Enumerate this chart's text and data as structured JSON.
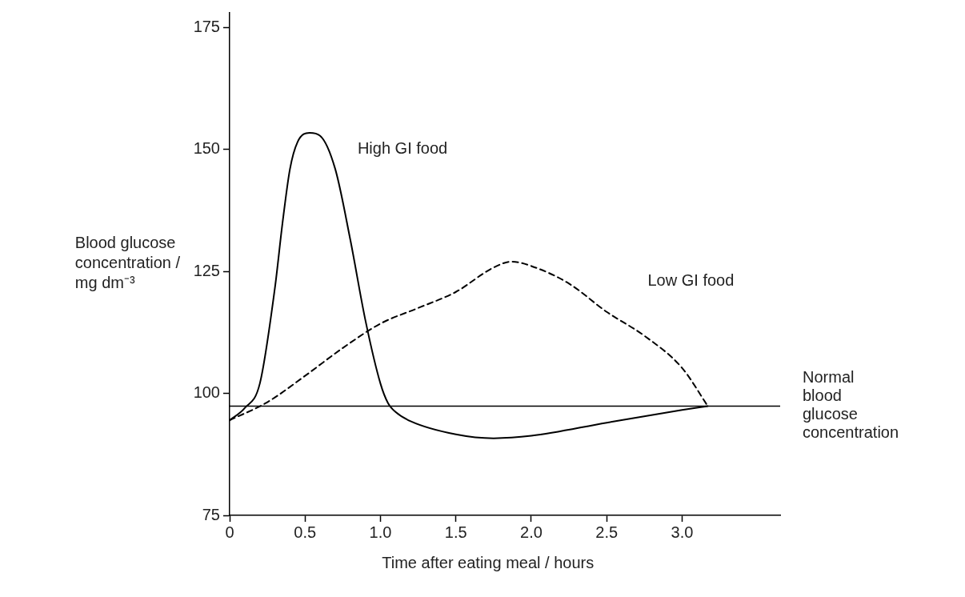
{
  "chart_data": {
    "type": "line",
    "xlabel": "Time after eating meal / hours",
    "ylabel": "Blood glucose concentration / mg dm⁻³",
    "series": [
      {
        "name": "High GI food",
        "color": "#000000",
        "line_style": "solid",
        "x": [
          0,
          0.1,
          0.2,
          0.3,
          0.35,
          0.4,
          0.45,
          0.53,
          0.6,
          0.7,
          0.8,
          0.9,
          1.0,
          1.05,
          1.1,
          1.2,
          1.5,
          1.75,
          2.0,
          2.5,
          3.0,
          3.17
        ],
        "values": [
          94.5,
          97,
          102,
          121.6,
          134.8,
          146,
          151.5,
          153.4,
          152.8,
          146,
          131.5,
          115,
          102,
          98,
          96.2,
          94.3,
          91.6,
          90.8,
          91.3,
          94,
          96.6,
          97.4
        ]
      },
      {
        "name": "Low GI food",
        "color": "#000000",
        "line_style": "dashed",
        "x": [
          0,
          0.25,
          0.5,
          0.75,
          1.0,
          1.25,
          1.5,
          1.75,
          1.87,
          2.0,
          2.25,
          2.5,
          2.75,
          3.0,
          3.17
        ],
        "values": [
          94.5,
          98.2,
          103.6,
          109.3,
          114.3,
          117.5,
          120.8,
          125.8,
          127,
          126.1,
          122.5,
          116.7,
          111.8,
          105.2,
          97.4
        ]
      }
    ],
    "ref_lines": [
      {
        "axis": "y",
        "value": 97.4,
        "label": "Normal blood glucose concentration",
        "color": "#000000",
        "line_style": "solid"
      }
    ],
    "xlim": [
      0,
      3.65
    ],
    "xticks": [
      0,
      0.5,
      {
        "value": 1,
        "label": "1.0"
      },
      1.5,
      {
        "value": 2,
        "label": "2.0"
      },
      2.5,
      {
        "value": 3,
        "label": "3.0"
      }
    ],
    "ylim": [
      75,
      178
    ],
    "yticks": [
      75,
      100,
      125,
      150,
      175
    ],
    "grid": false,
    "legend": false,
    "marker": "none"
  }
}
